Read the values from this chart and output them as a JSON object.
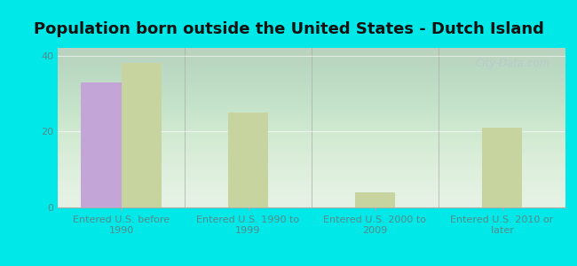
{
  "title": "Population born outside the United States - Dutch Island",
  "categories": [
    "Entered U.S. before\n1990",
    "Entered U.S. 1990 to\n1999",
    "Entered U.S. 2000 to\n2009",
    "Entered U.S. 2010 or\nlater"
  ],
  "native_values": [
    33,
    0,
    0,
    0
  ],
  "foreign_values": [
    38,
    25,
    4,
    21
  ],
  "native_color": "#c4a5d8",
  "foreign_color": "#c8d4a0",
  "background_outer": "#00e8e8",
  "plot_bg_color": "#e2f0e2",
  "yticks": [
    0,
    20,
    40
  ],
  "ylim": [
    0,
    42
  ],
  "bar_width": 0.32,
  "title_fontsize": 13,
  "tick_label_fontsize": 8,
  "legend_fontsize": 9.5,
  "watermark_text": "City-Data.com",
  "watermark_color": "#b8c8cc",
  "axis_label_color": "#5a8a8a",
  "title_color": "#111111"
}
